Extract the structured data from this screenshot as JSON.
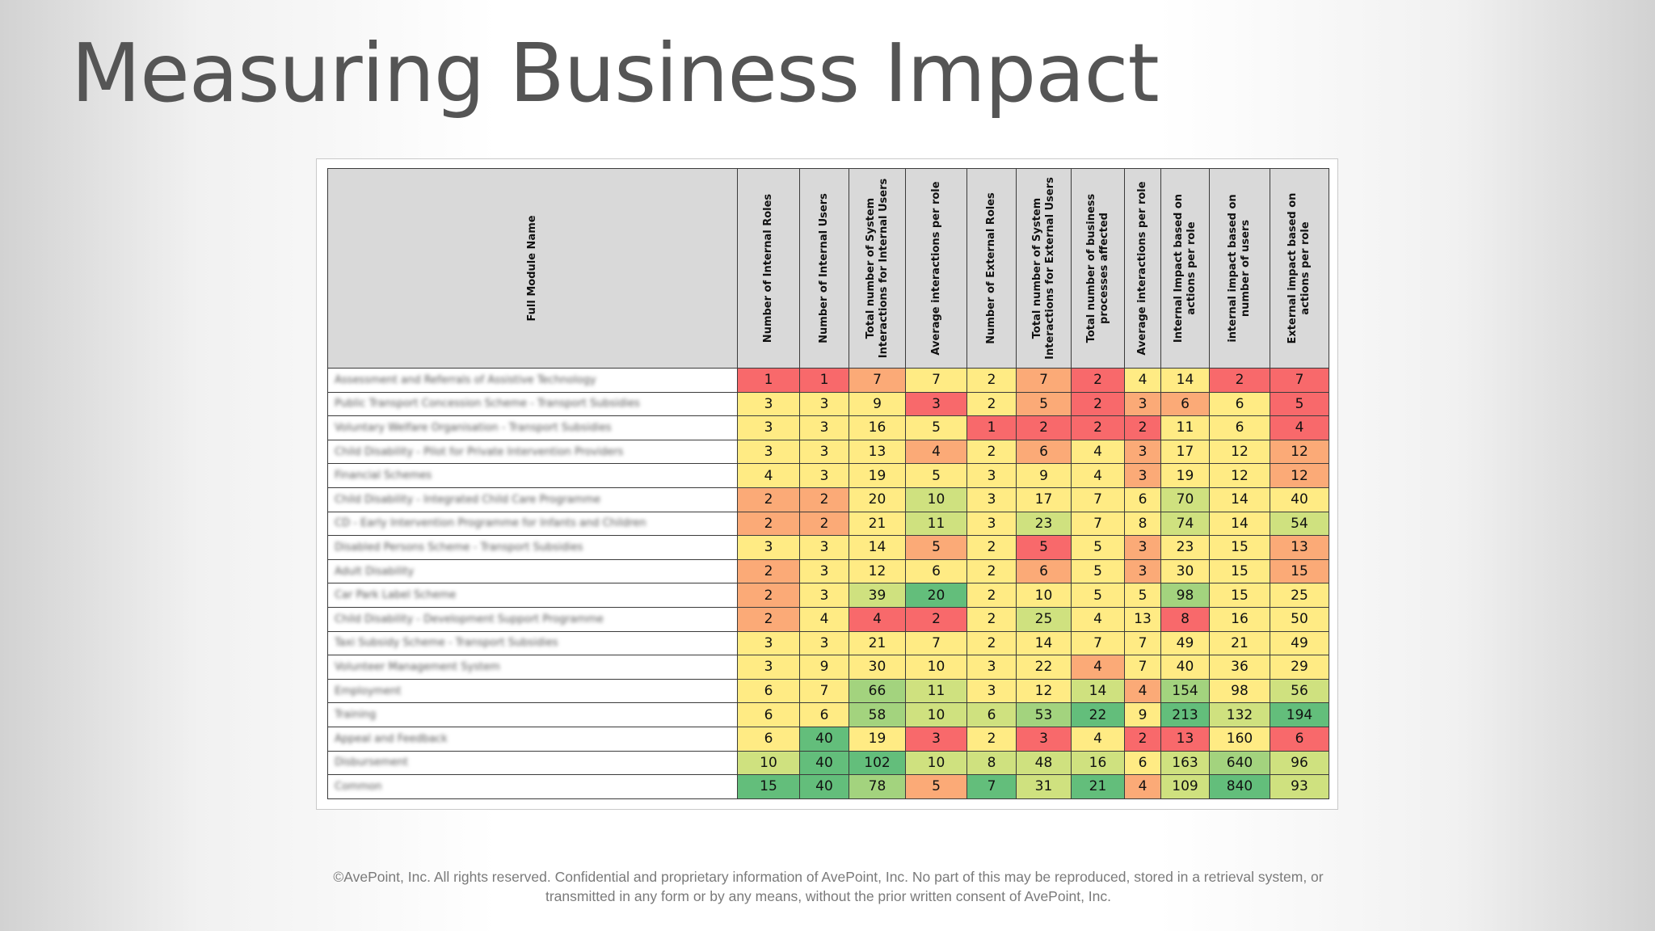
{
  "slide": {
    "title": "Measuring Business Impact",
    "footer": "©AvePoint, Inc. All rights reserved. Confidential and proprietary information of AvePoint, Inc. No part of this may be reproduced, stored in a retrieval system, or transmitted in any form or by any means, without the prior written consent of AvePoint, Inc."
  },
  "colors": {
    "red": "#f8696b",
    "orange": "#fbaa77",
    "yellow": "#ffeb84",
    "ygreen": "#cfe17f",
    "lgreen": "#a3d37e",
    "green": "#63be7b",
    "header_bg": "#d9d9d9"
  },
  "table": {
    "headers": [
      "Full Module Name",
      "Number of Internal Roles",
      "Number of Internal Users",
      "Total number of System Interactions for Internal Users",
      "Average interactions per role",
      "Number of External Roles",
      "Total number of System Interactions for External Users",
      "Total number of business processes affected",
      "Average interactions per role",
      "Internal Impact based on actions per role",
      "internal impact based on number of users",
      "External impact based on actions per role"
    ],
    "rows": [
      {
        "name": "Assessment and Referrals of Assistive Technology",
        "values": [
          1,
          1,
          7,
          7,
          2,
          7,
          2,
          4,
          14,
          2,
          7
        ],
        "colors": [
          "red",
          "red",
          "orange",
          "yellow",
          "yellow",
          "orange",
          "red",
          "yellow",
          "yellow",
          "red",
          "red"
        ]
      },
      {
        "name": "Public Transport Concession Scheme - Transport Subsidies",
        "values": [
          3,
          3,
          9,
          3,
          2,
          5,
          2,
          3,
          6,
          6,
          5
        ],
        "colors": [
          "yellow",
          "yellow",
          "yellow",
          "red",
          "yellow",
          "orange",
          "red",
          "orange",
          "orange",
          "yellow",
          "red"
        ]
      },
      {
        "name": "Voluntary Welfare Organisation - Transport Subsidies",
        "values": [
          3,
          3,
          16,
          5,
          1,
          2,
          2,
          2,
          11,
          6,
          4
        ],
        "colors": [
          "yellow",
          "yellow",
          "yellow",
          "yellow",
          "red",
          "red",
          "red",
          "red",
          "yellow",
          "yellow",
          "red"
        ]
      },
      {
        "name": "Child Disability - Pilot for Private Intervention Providers",
        "values": [
          3,
          3,
          13,
          4,
          2,
          6,
          4,
          3,
          17,
          12,
          12
        ],
        "colors": [
          "yellow",
          "yellow",
          "yellow",
          "orange",
          "yellow",
          "orange",
          "yellow",
          "orange",
          "yellow",
          "yellow",
          "orange"
        ]
      },
      {
        "name": "Financial Schemes",
        "values": [
          4,
          3,
          19,
          5,
          3,
          9,
          4,
          3,
          19,
          12,
          12
        ],
        "colors": [
          "yellow",
          "yellow",
          "yellow",
          "yellow",
          "yellow",
          "yellow",
          "yellow",
          "orange",
          "yellow",
          "yellow",
          "orange"
        ]
      },
      {
        "name": "Child Disability - Integrated Child Care Programme",
        "values": [
          2,
          2,
          20,
          10,
          3,
          17,
          7,
          6,
          70,
          14,
          40
        ],
        "colors": [
          "orange",
          "orange",
          "yellow",
          "ygreen",
          "yellow",
          "yellow",
          "yellow",
          "yellow",
          "ygreen",
          "yellow",
          "yellow"
        ]
      },
      {
        "name": "CD - Early Intervention Programme for Infants and Children",
        "values": [
          2,
          2,
          21,
          11,
          3,
          23,
          7,
          8,
          74,
          14,
          54
        ],
        "colors": [
          "orange",
          "orange",
          "yellow",
          "ygreen",
          "yellow",
          "ygreen",
          "yellow",
          "yellow",
          "ygreen",
          "yellow",
          "ygreen"
        ]
      },
      {
        "name": "Disabled Persons Scheme - Transport Subsidies",
        "values": [
          3,
          3,
          14,
          5,
          2,
          5,
          5,
          3,
          23,
          15,
          13
        ],
        "colors": [
          "yellow",
          "yellow",
          "yellow",
          "orange",
          "yellow",
          "red",
          "yellow",
          "orange",
          "yellow",
          "yellow",
          "orange"
        ]
      },
      {
        "name": "Adult Disability",
        "values": [
          2,
          3,
          12,
          6,
          2,
          6,
          5,
          3,
          30,
          15,
          15
        ],
        "colors": [
          "orange",
          "yellow",
          "yellow",
          "yellow",
          "yellow",
          "orange",
          "yellow",
          "orange",
          "yellow",
          "yellow",
          "orange"
        ]
      },
      {
        "name": "Car Park Label Scheme",
        "values": [
          2,
          3,
          39,
          20,
          2,
          10,
          5,
          5,
          98,
          15,
          25
        ],
        "colors": [
          "orange",
          "yellow",
          "ygreen",
          "green",
          "yellow",
          "yellow",
          "yellow",
          "yellow",
          "lgreen",
          "yellow",
          "yellow"
        ]
      },
      {
        "name": "Child Disability - Development Support Programme",
        "values": [
          2,
          4,
          4,
          2,
          2,
          25,
          4,
          13,
          8,
          16,
          50
        ],
        "colors": [
          "orange",
          "yellow",
          "red",
          "red",
          "yellow",
          "ygreen",
          "yellow",
          "yellow",
          "red",
          "yellow",
          "yellow"
        ]
      },
      {
        "name": "Taxi Subsidy Scheme - Transport Subsidies",
        "values": [
          3,
          3,
          21,
          7,
          2,
          14,
          7,
          7,
          49,
          21,
          49
        ],
        "colors": [
          "yellow",
          "yellow",
          "yellow",
          "yellow",
          "yellow",
          "yellow",
          "yellow",
          "yellow",
          "yellow",
          "yellow",
          "yellow"
        ]
      },
      {
        "name": "Volunteer Management System",
        "values": [
          3,
          9,
          30,
          10,
          3,
          22,
          4,
          7,
          40,
          36,
          29
        ],
        "colors": [
          "yellow",
          "yellow",
          "yellow",
          "yellow",
          "yellow",
          "yellow",
          "orange",
          "yellow",
          "yellow",
          "yellow",
          "yellow"
        ]
      },
      {
        "name": "Employment",
        "values": [
          6,
          7,
          66,
          11,
          3,
          12,
          14,
          4,
          154,
          98,
          56
        ],
        "colors": [
          "yellow",
          "yellow",
          "lgreen",
          "ygreen",
          "yellow",
          "yellow",
          "ygreen",
          "orange",
          "lgreen",
          "yellow",
          "ygreen"
        ]
      },
      {
        "name": "Training",
        "values": [
          6,
          6,
          58,
          10,
          6,
          53,
          22,
          9,
          213,
          132,
          194
        ],
        "colors": [
          "yellow",
          "yellow",
          "lgreen",
          "ygreen",
          "ygreen",
          "lgreen",
          "green",
          "yellow",
          "green",
          "ygreen",
          "green"
        ]
      },
      {
        "name": "Appeal and Feedback",
        "values": [
          6,
          40,
          19,
          3,
          2,
          3,
          4,
          2,
          13,
          160,
          6
        ],
        "colors": [
          "yellow",
          "green",
          "yellow",
          "red",
          "yellow",
          "red",
          "yellow",
          "red",
          "red",
          "yellow",
          "red"
        ]
      },
      {
        "name": "Disbursement",
        "values": [
          10,
          40,
          102,
          10,
          8,
          48,
          16,
          6,
          163,
          640,
          96
        ],
        "colors": [
          "ygreen",
          "green",
          "green",
          "ygreen",
          "ygreen",
          "ygreen",
          "ygreen",
          "yellow",
          "ygreen",
          "lgreen",
          "ygreen"
        ]
      },
      {
        "name": "Common",
        "values": [
          15,
          40,
          78,
          5,
          7,
          31,
          21,
          4,
          109,
          840,
          93
        ],
        "colors": [
          "green",
          "green",
          "lgreen",
          "orange",
          "green",
          "ygreen",
          "green",
          "orange",
          "ygreen",
          "green",
          "ygreen"
        ]
      }
    ]
  }
}
